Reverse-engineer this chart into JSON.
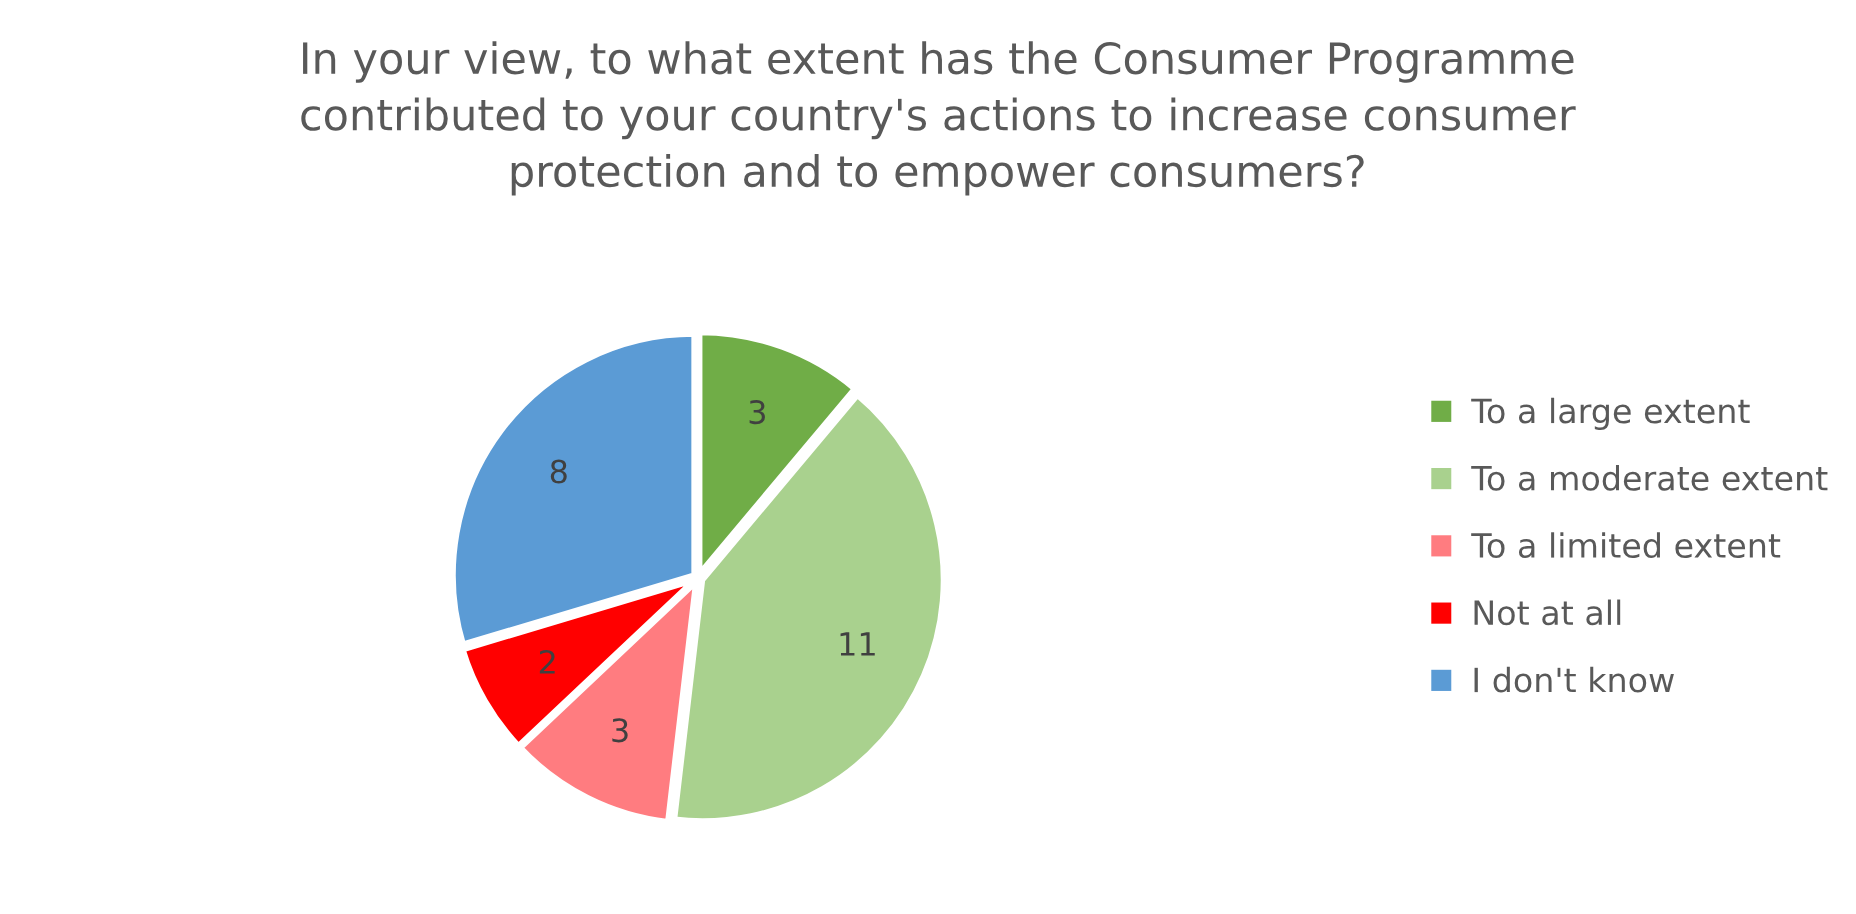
{
  "chart_data": {
    "type": "pie",
    "title": "In your view, to what extent has the Consumer Programme\ncontributed to your country's actions to increase consumer\nprotection and to empower consumers?",
    "categories": [
      "To a large extent",
      "To a moderate extent",
      "To a limited extent",
      "Not at all",
      "I don't know"
    ],
    "values": [
      3,
      11,
      3,
      2,
      8
    ],
    "colors": [
      "#70ad47",
      "#a9d18e",
      "#ff7c80",
      "#ff0000",
      "#5b9bd5"
    ],
    "data_labels": true,
    "legend": "right"
  }
}
